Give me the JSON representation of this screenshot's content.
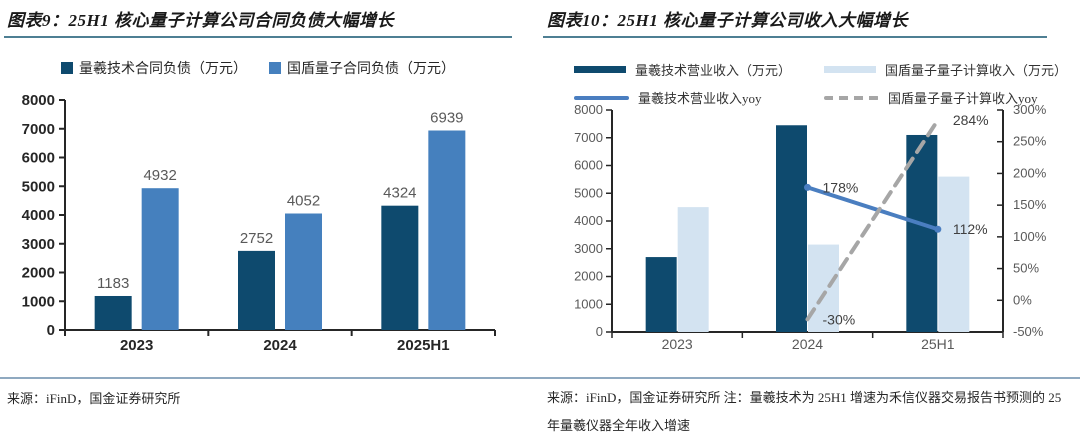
{
  "panels": [
    {
      "title": "图表9：25H1 核心量子计算公司合同负债大幅增长",
      "source": "来源：iFinD，国金证券研究所",
      "note": ""
    },
    {
      "title": "图表10：25H1 核心量子计算公司收入大幅增长",
      "source": "来源：iFinD，国金证券研究所",
      "note": "注：量羲技术为 25H1 增速为禾信仪器交易报告书预测的 25 年量羲仪器全年收入增速"
    }
  ],
  "colors": {
    "navy": "#0E4A6E",
    "blue": "#4580BE",
    "lightblue": "#D3E3F1",
    "lineblue": "#4A7EC0",
    "graydash": "#A6A6A6",
    "axis": "#262626",
    "axis_label_gray": "#595959",
    "data_label": "#595959",
    "annotation": "#404040",
    "title_rule": "#4E7F93",
    "footer_rule": "#8FA9C0"
  },
  "chart_data": [
    {
      "type": "bar",
      "title": "25H1 核心量子计算公司合同负债大幅增长",
      "categories": [
        "2023",
        "2024",
        "2025H1"
      ],
      "series": [
        {
          "name": "量羲技术合同负债（万元）",
          "values": [
            1183,
            2752,
            4324
          ],
          "color_key": "navy"
        },
        {
          "name": "国盾量子合同负债（万元）",
          "values": [
            4932,
            4052,
            6939
          ],
          "color_key": "blue"
        }
      ],
      "ylim": [
        0,
        8000
      ],
      "ytick_step": 1000,
      "grid": false,
      "legend_position": "top",
      "data_labels": true
    },
    {
      "type": "bar+line",
      "title": "25H1 核心量子计算公司收入大幅增长",
      "categories": [
        "2023",
        "2024",
        "25H1"
      ],
      "bar_series": [
        {
          "name": "量羲技术营业收入（万元）",
          "values": [
            2700,
            7450,
            7100
          ],
          "color_key": "navy",
          "axis": "left"
        },
        {
          "name": "国盾量子量子计算收入（万元）",
          "values": [
            4500,
            3150,
            5600
          ],
          "color_key": "lightblue",
          "axis": "left"
        }
      ],
      "line_series": [
        {
          "name": "量羲技术营业收入yoy",
          "values": [
            null,
            178,
            112
          ],
          "unit": "%",
          "color_key": "lineblue",
          "dashed": false,
          "axis": "right"
        },
        {
          "name": "国盾量子量子计算收入yoy",
          "values": [
            null,
            -30,
            284
          ],
          "unit": "%",
          "color_key": "graydash",
          "dashed": true,
          "axis": "right"
        }
      ],
      "point_labels": [
        {
          "cat": 1,
          "value": 178,
          "text": "178%"
        },
        {
          "cat": 2,
          "value": 112,
          "text": "112%"
        },
        {
          "cat": 1,
          "value": -30,
          "text": "-30%"
        },
        {
          "cat": 2,
          "value": 284,
          "text": "284%"
        }
      ],
      "ylim_left": [
        0,
        8000
      ],
      "ytick_step_left": 1000,
      "ylim_right": [
        -50,
        300
      ],
      "ytick_step_right": 50,
      "grid": false,
      "legend_position": "top"
    }
  ]
}
